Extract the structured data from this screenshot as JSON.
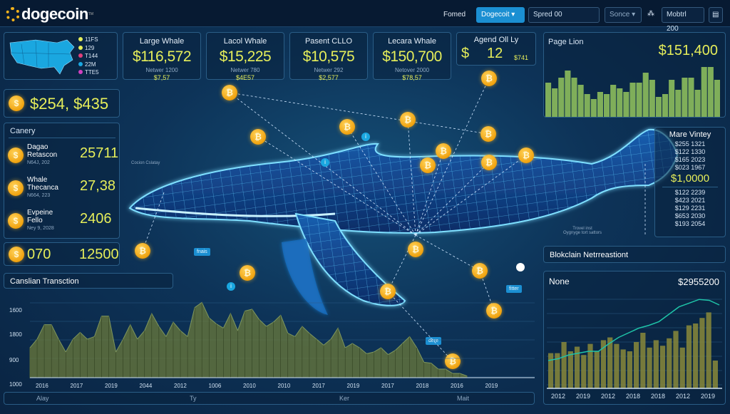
{
  "header": {
    "logo": "dogecoin",
    "logo_mark": "TM",
    "filter_label": "Fomed",
    "coin_select": "Dogecoit",
    "spread_input": "Spred 00",
    "source_select": "Sonce",
    "network_icon": "share-nodes-icon",
    "mode_button": "Mobtrl 200",
    "menu_icon": "document-icon"
  },
  "map_card": {
    "legend": [
      {
        "label": "11FS",
        "color": "#e6ee5a"
      },
      {
        "label": "129",
        "color": "#e6ee5a"
      },
      {
        "label": "T144",
        "color": "#e0407a"
      },
      {
        "label": "22M",
        "color": "#1aa7e0"
      },
      {
        "label": "TTE5",
        "color": "#d040c0"
      }
    ]
  },
  "stats": [
    {
      "title": "Large Whale",
      "value": "$116,572",
      "sub": "Netwer 1200",
      "bottom": "$7,57"
    },
    {
      "title": "Lacol Whale",
      "value": "$15,225",
      "sub": "Netwer 780",
      "bottom": "$4E57"
    },
    {
      "title": "Pasent CLLO",
      "value": "$10,575",
      "sub": "Netwer 292",
      "bottom": "$2,577"
    },
    {
      "title": "Lecara Whale",
      "value": "$150,700",
      "sub": "Netover 2000",
      "bottom": "$78,57"
    }
  ],
  "agend": {
    "title": "Agend Oll Ly",
    "currency": "$",
    "value": "12",
    "sub": "$741"
  },
  "balance": {
    "value": "$254, $435"
  },
  "canery": {
    "title": "Canery",
    "items": [
      {
        "name": "Dagao Retascon",
        "date": "N64J, 202",
        "value": "25711"
      },
      {
        "name": "Whale Thecanca",
        "date": "N664, 223",
        "value": "27,38"
      },
      {
        "name": "Evpeine Fello",
        "date": "Ney 9, 2028",
        "value": "2406"
      }
    ]
  },
  "coin_row": {
    "left": "070",
    "right": "12500"
  },
  "page_lion": {
    "title": "Page Lion",
    "value": "$151,400"
  },
  "mare_vintey": {
    "title": "Mare Vintey",
    "top": [
      "$255 1321",
      "$122 1330",
      "$165 2023",
      "$023 1967"
    ],
    "highlight": "$1,0000",
    "bottom": [
      "$122 2239",
      "$423 2021",
      "$129 2231",
      "$653 2030",
      "$193 2054"
    ]
  },
  "whale_note": [
    "Trovel inst",
    "Oygnyge tort sattors"
  ],
  "float_label": "Cocion Cslatay",
  "tags": [
    "fnais",
    "fitter",
    "dere"
  ],
  "blockchain_bar": {
    "title": "Blokclain Netrreastiont"
  },
  "transaction": {
    "title": "Canslian Transction",
    "bottom_labels": [
      "Alay",
      "Ty",
      "Ker",
      "Mait"
    ]
  },
  "none_chart": {
    "title": "None",
    "value": "$2955200"
  },
  "chart_data": [
    {
      "type": "area",
      "title": "Canslian Transction",
      "yticks": [
        "1600",
        "1800",
        "900",
        "1000"
      ],
      "xticks": [
        "2016",
        "2017",
        "2019",
        "2044",
        "2012",
        "1006",
        "2010",
        "2010",
        "2017",
        "2019",
        "2017",
        "2018",
        "2016",
        "2019"
      ],
      "values": [
        35,
        45,
        62,
        62,
        45,
        30,
        45,
        53,
        45,
        48,
        72,
        72,
        30,
        45,
        62,
        45,
        55,
        75,
        60,
        48,
        65,
        55,
        48,
        82,
        88,
        70,
        63,
        58,
        75,
        55,
        78,
        80,
        68,
        60,
        65,
        73,
        52,
        48,
        60,
        52,
        45,
        38,
        45,
        58,
        35,
        40,
        35,
        28,
        30,
        35,
        27,
        32,
        40,
        48,
        35,
        18,
        17,
        10,
        10,
        5,
        5,
        2
      ],
      "color": "#6b7a3a"
    },
    {
      "type": "bar",
      "title": "Page Lion",
      "values": [
        48,
        40,
        55,
        65,
        55,
        45,
        32,
        25,
        35,
        32,
        45,
        40,
        35,
        48,
        48,
        62,
        52,
        28,
        32,
        52,
        38,
        55,
        55,
        38,
        70,
        70,
        52
      ],
      "color": "#7fae5a"
    },
    {
      "type": "bar+line",
      "title": "None",
      "xticks": [
        "2012",
        "2019",
        "2012",
        "2018",
        "2018",
        "2012",
        "2019"
      ],
      "values": [
        38,
        38,
        50,
        40,
        45,
        36,
        48,
        40,
        52,
        55,
        48,
        42,
        40,
        50,
        60,
        44,
        52,
        46,
        54,
        62,
        44,
        68,
        70,
        76,
        82,
        30
      ],
      "line": [
        30,
        32,
        36,
        38,
        40,
        40,
        48,
        55,
        60,
        65,
        68,
        72,
        80,
        88,
        92,
        96,
        95,
        90
      ],
      "color": "#8a8a3a",
      "line_color": "#1fc4a8"
    }
  ]
}
